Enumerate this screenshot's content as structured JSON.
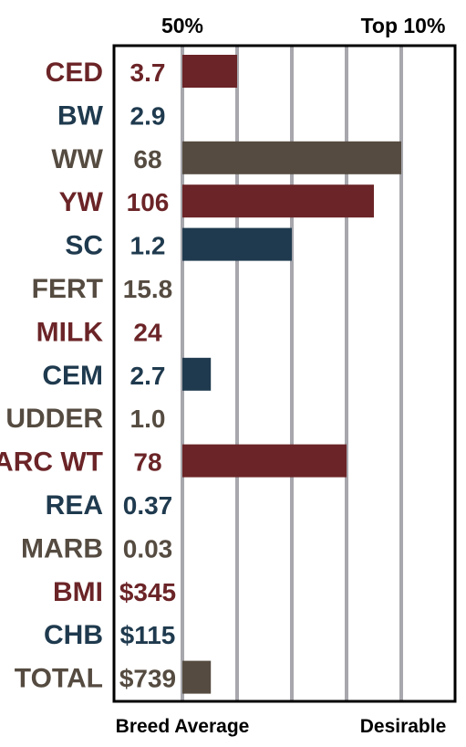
{
  "colors": {
    "maroon": "#6b2427",
    "navy": "#1f3a4e",
    "olive": "#554b40",
    "grid": "#a7a7ad",
    "frame": "#000000"
  },
  "chart_data": {
    "type": "bar",
    "orientation": "horizontal",
    "title": "",
    "xlabel": "",
    "ylabel": "",
    "top_labels": {
      "left": "50%",
      "right": "Top 10%"
    },
    "bottom_labels": {
      "left": "Breed Average",
      "right": "Desirable"
    },
    "grid": true,
    "rows": [
      {
        "trait": "CED",
        "value_label": "3.7",
        "bar_fraction": 0.25,
        "color": "maroon"
      },
      {
        "trait": "BW",
        "value_label": "2.9",
        "bar_fraction": 0,
        "color": "navy"
      },
      {
        "trait": "WW",
        "value_label": "68",
        "bar_fraction": 1.0,
        "color": "olive"
      },
      {
        "trait": "YW",
        "value_label": "106",
        "bar_fraction": 0.875,
        "color": "maroon"
      },
      {
        "trait": "SC",
        "value_label": "1.2",
        "bar_fraction": 0.5,
        "color": "navy"
      },
      {
        "trait": "FERT",
        "value_label": "15.8",
        "bar_fraction": 0,
        "color": "olive"
      },
      {
        "trait": "MILK",
        "value_label": "24",
        "bar_fraction": 0,
        "color": "maroon"
      },
      {
        "trait": "CEM",
        "value_label": "2.7",
        "bar_fraction": 0.13,
        "color": "navy"
      },
      {
        "trait": "UDDER",
        "value_label": "1.0",
        "bar_fraction": 0,
        "color": "olive"
      },
      {
        "trait": "CARC WT",
        "value_label": "78",
        "bar_fraction": 0.75,
        "color": "maroon"
      },
      {
        "trait": "REA",
        "value_label": "0.37",
        "bar_fraction": 0,
        "color": "navy"
      },
      {
        "trait": "MARB",
        "value_label": "0.03",
        "bar_fraction": 0,
        "color": "olive"
      },
      {
        "trait": "BMI",
        "value_label": "$345",
        "bar_fraction": 0,
        "color": "maroon"
      },
      {
        "trait": "CHB",
        "value_label": "$115",
        "bar_fraction": 0,
        "color": "navy"
      },
      {
        "trait": "TOTAL",
        "value_label": "$739",
        "bar_fraction": 0.13,
        "color": "olive"
      }
    ]
  }
}
